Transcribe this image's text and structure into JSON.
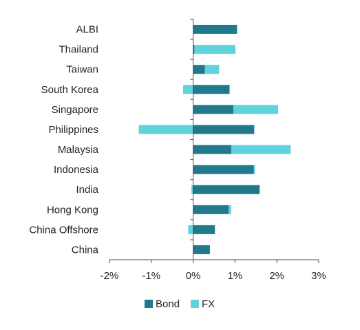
{
  "chart_data": {
    "type": "bar",
    "orientation": "horizontal",
    "stacked": true,
    "categories": [
      "ALBI",
      "Thailand",
      "Taiwan",
      "South Korea",
      "Singapore",
      "Philippines",
      "Malaysia",
      "Indonesia",
      "India",
      "Hong Kong",
      "China Offshore",
      "China"
    ],
    "series": [
      {
        "name": "Bond",
        "color": "#217a8b",
        "values": [
          1.05,
          0.03,
          0.28,
          0.87,
          0.96,
          1.46,
          0.91,
          1.45,
          1.59,
          0.85,
          0.52,
          0.4
        ]
      },
      {
        "name": "FX",
        "color": "#5fd3dc",
        "values": [
          0.0,
          0.98,
          0.34,
          -0.24,
          1.07,
          -1.3,
          1.42,
          0.03,
          -0.04,
          0.06,
          -0.12,
          0.0
        ]
      }
    ],
    "xlim": [
      -2,
      3
    ],
    "x_ticks": [
      -2,
      -1,
      0,
      1,
      2,
      3
    ],
    "x_tick_labels": [
      "-2%",
      "-1%",
      "0%",
      "1%",
      "2%",
      "3%"
    ],
    "title": "",
    "xlabel": "",
    "ylabel": "",
    "grid": false,
    "legend": {
      "position": "bottom-center",
      "entries": [
        "Bond",
        "FX"
      ]
    },
    "axis_color": "#4d4d4f"
  }
}
